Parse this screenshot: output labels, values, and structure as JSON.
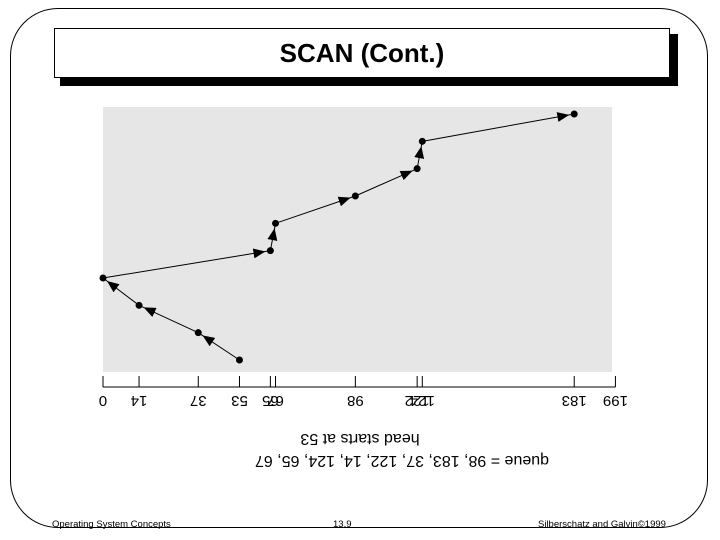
{
  "slide": {
    "title": "SCAN (Cont.)",
    "footer_left": "Operating System Concepts",
    "footer_center": "13.9",
    "footer_right": "Silberschatz and Galvin©1999"
  },
  "diagram": {
    "ticks": [
      "0",
      "14",
      "37",
      "53",
      "65",
      "67",
      "98",
      "122",
      "124",
      "183",
      "199"
    ],
    "caption_line1": "head starts at 53",
    "caption_line2": "queue = 98, 183, 37, 122, 14, 124, 65, 67",
    "colors": {
      "plot_bg": "#e6e6e6",
      "line": "#000000"
    }
  },
  "chart_data": {
    "type": "line",
    "xlim": [
      0,
      199
    ],
    "x": [
      53,
      37,
      14,
      0,
      65,
      67,
      98,
      122,
      124,
      183
    ],
    "y": [
      0,
      1,
      2,
      3,
      4,
      5,
      6,
      7,
      8,
      9
    ]
  }
}
